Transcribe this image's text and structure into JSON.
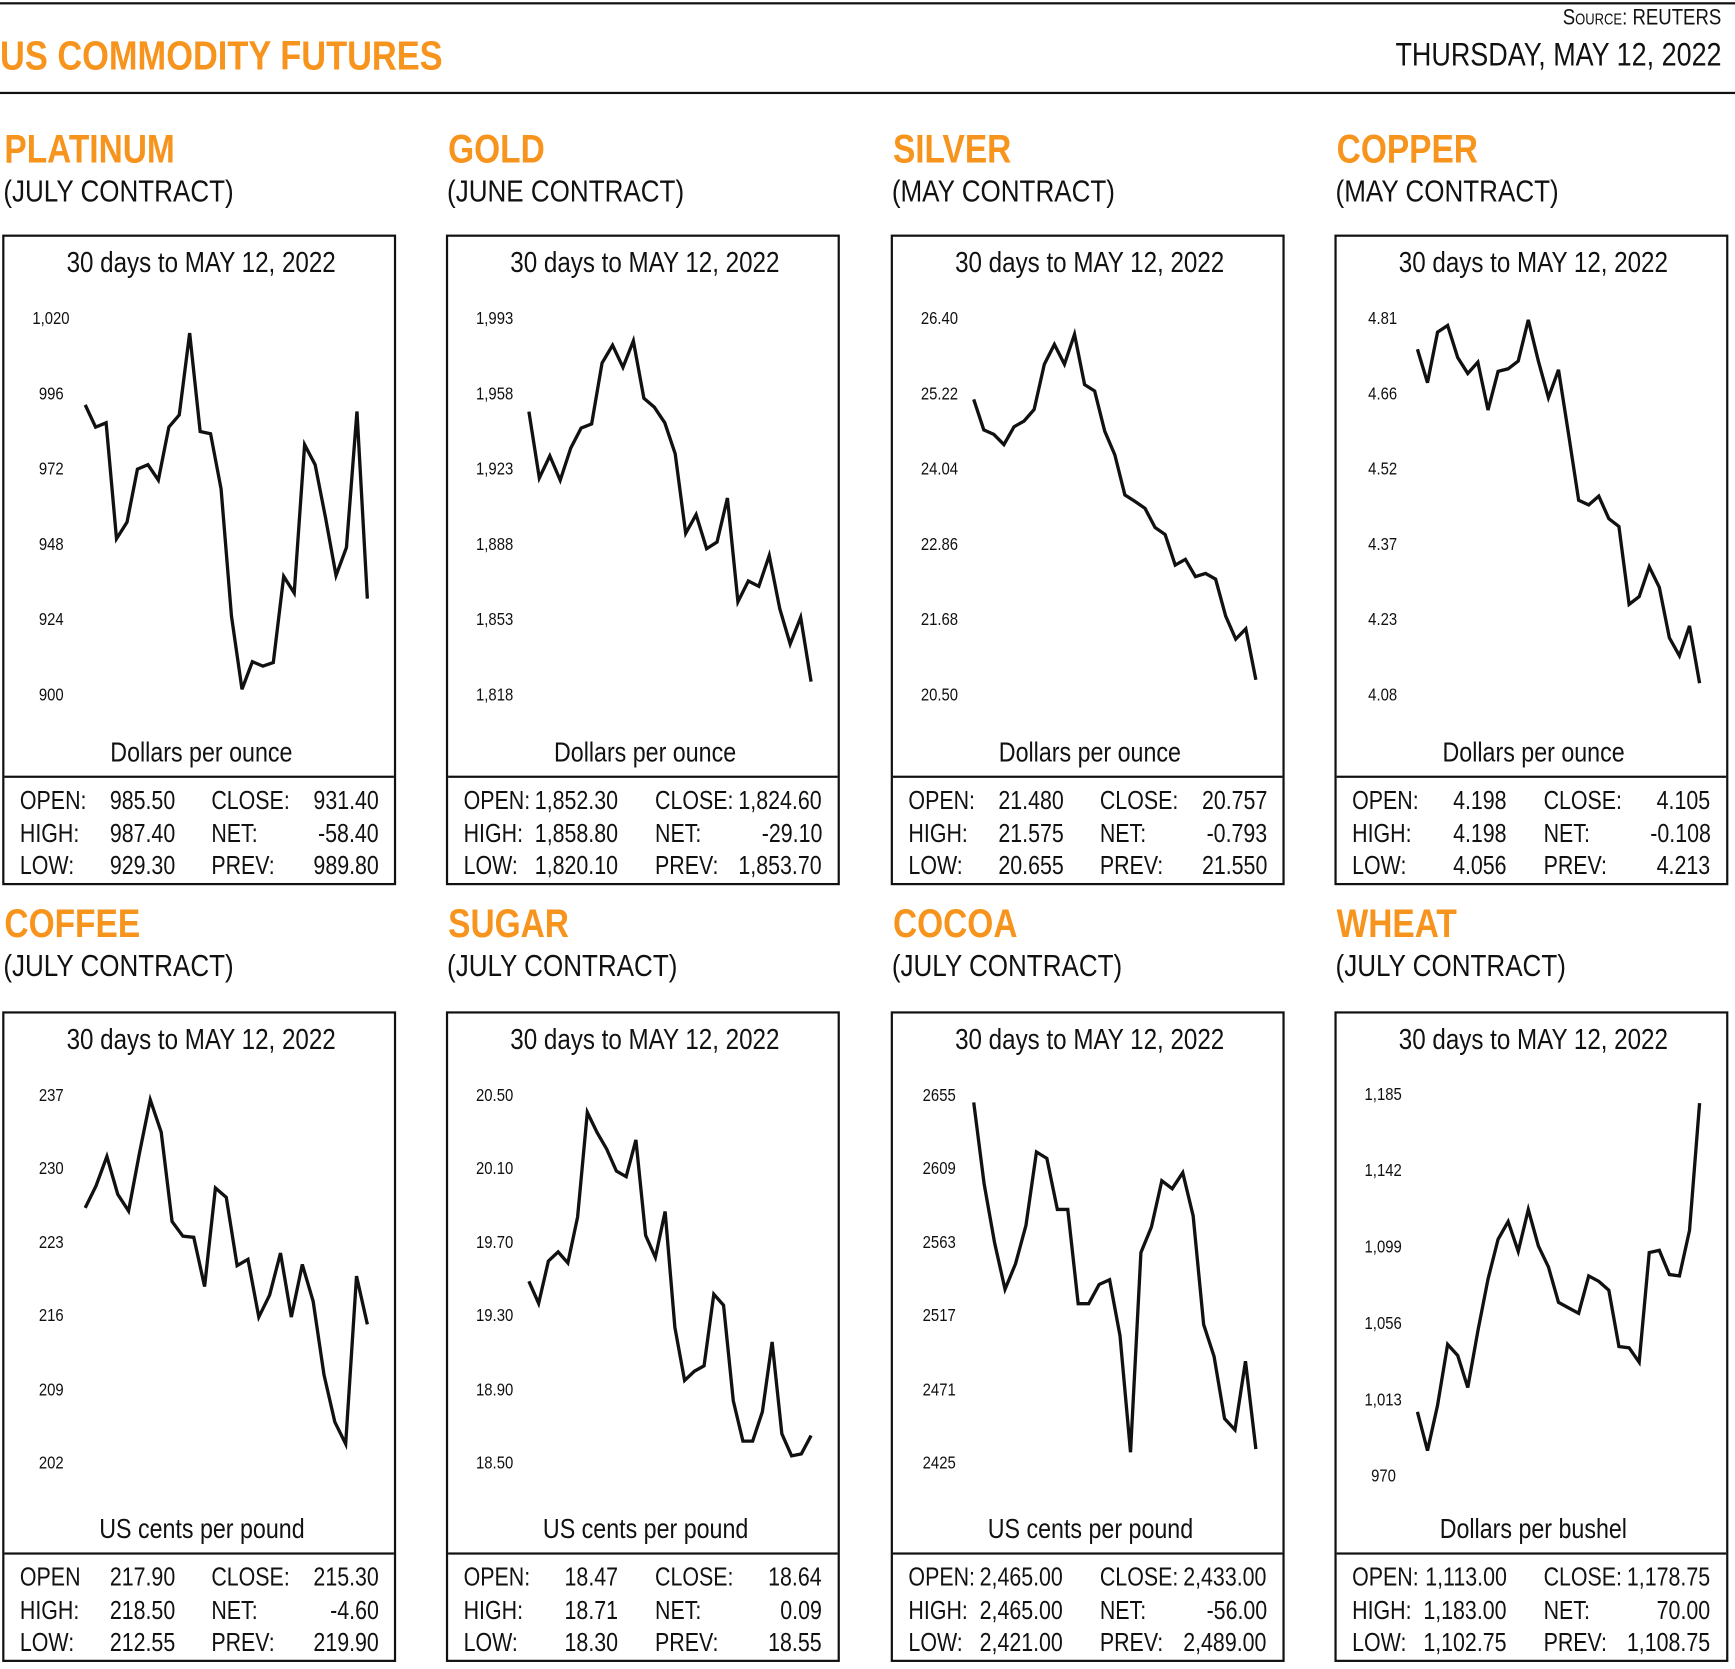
{
  "header": {
    "title": "US COMMODITY FUTURES",
    "source_label": "Source:",
    "source_value": "REUTERS",
    "date": "THURSDAY, MAY 12, 2022"
  },
  "colors": {
    "accent": "#f7941d",
    "line": "#111111"
  },
  "panels": [
    {
      "name": "PLATINUM",
      "contract": "(JULY CONTRACT)",
      "stats": {
        "open_label": "OPEN:",
        "open": "985.50",
        "high_label": "HIGH:",
        "high": "987.40",
        "low_label": "LOW:",
        "low": "929.30",
        "close_label": "CLOSE:",
        "close": "931.40",
        "net_label": "NET:",
        "net": "-58.40",
        "prev_label": "PREV:",
        "prev": "989.80"
      }
    },
    {
      "name": "GOLD",
      "contract": "(JUNE CONTRACT)",
      "stats": {
        "open_label": "OPEN:",
        "open": "1,852.30",
        "high_label": "HIGH:",
        "high": "1,858.80",
        "low_label": "LOW:",
        "low": "1,820.10",
        "close_label": "CLOSE:",
        "close": "1,824.60",
        "net_label": "NET:",
        "net": "-29.10",
        "prev_label": "PREV:",
        "prev": "1,853.70"
      }
    },
    {
      "name": "SILVER",
      "contract": "(MAY CONTRACT)",
      "stats": {
        "open_label": "OPEN:",
        "open": "21.480",
        "high_label": "HIGH:",
        "high": "21.575",
        "low_label": "LOW:",
        "low": "20.655",
        "close_label": "CLOSE:",
        "close": "20.757",
        "net_label": "NET:",
        "net": "-0.793",
        "prev_label": "PREV:",
        "prev": "21.550"
      }
    },
    {
      "name": "COPPER",
      "contract": "(MAY CONTRACT)",
      "stats": {
        "open_label": "OPEN:",
        "open": "4.198",
        "high_label": "HIGH:",
        "high": "4.198",
        "low_label": "LOW:",
        "low": "4.056",
        "close_label": "CLOSE:",
        "close": "4.105",
        "net_label": "NET:",
        "net": "-0.108",
        "prev_label": "PREV:",
        "prev": "4.213"
      }
    },
    {
      "name": "COFFEE",
      "contract": "(JULY CONTRACT)",
      "stats": {
        "open_label": "OPEN",
        "open": "217.90",
        "high_label": "HIGH:",
        "high": "218.50",
        "low_label": "LOW:",
        "low": "212.55",
        "close_label": "CLOSE:",
        "close": "215.30",
        "net_label": "NET:",
        "net": "-4.60",
        "prev_label": "PREV:",
        "prev": "219.90"
      }
    },
    {
      "name": "SUGAR",
      "contract": "(JULY CONTRACT)",
      "stats": {
        "open_label": "OPEN:",
        "open": "18.47",
        "high_label": "HIGH:",
        "high": "18.71",
        "low_label": "LOW:",
        "low": "18.30",
        "close_label": "CLOSE:",
        "close": "18.64",
        "net_label": "NET:",
        "net": "0.09",
        "prev_label": "PREV:",
        "prev": "18.55"
      }
    },
    {
      "name": "COCOA",
      "contract": "(JULY CONTRACT)",
      "stats": {
        "open_label": "OPEN:",
        "open": "2,465.00",
        "high_label": "HIGH:",
        "high": "2,465.00",
        "low_label": "LOW:",
        "low": "2,421.00",
        "close_label": "CLOSE:",
        "close": "2,433.00",
        "net_label": "NET:",
        "net": "-56.00",
        "prev_label": "PREV:",
        "prev": "2,489.00"
      }
    },
    {
      "name": "WHEAT",
      "contract": "(JULY CONTRACT)",
      "stats": {
        "open_label": "OPEN:",
        "open": "1,113.00",
        "high_label": "HIGH:",
        "high": "1,183.00",
        "low_label": "LOW:",
        "low": "1,102.75",
        "close_label": "CLOSE:",
        "close": "1,178.75",
        "net_label": "NET:",
        "net": "70.00",
        "prev_label": "PREV:",
        "prev": "1,108.75"
      }
    }
  ],
  "chart_data": [
    {
      "type": "line",
      "title": "30 days to MAY 12, 2022",
      "ylabel": "Dollars per ounce",
      "yticks": [
        "1,020",
        "996",
        "972",
        "948",
        "924",
        "900"
      ],
      "ylim": [
        900,
        1020
      ],
      "grid": false,
      "values": [
        993.2,
        986.1,
        987.5,
        950.5,
        955.8,
        972.7,
        974.1,
        969.2,
        986.1,
        990.0,
        1016.1,
        984.7,
        984.0,
        966.4,
        925.8,
        902.5,
        911.3,
        909.9,
        911.0,
        938.5,
        933.2,
        980.5,
        974.1,
        957.2,
        938.8,
        947.7,
        991.1,
        931.4
      ]
    },
    {
      "type": "line",
      "title": "30 days to MAY 12, 2022",
      "ylabel": "Dollars per ounce",
      "yticks": [
        "1,993",
        "1,958",
        "1,923",
        "1,888",
        "1,853",
        "1,818"
      ],
      "ylim": [
        1818,
        1993
      ],
      "grid": false,
      "values": [
        1950.8,
        1919.9,
        1930.2,
        1918.9,
        1933.8,
        1943.1,
        1945.1,
        1973.4,
        1981.7,
        1971.4,
        1983.7,
        1957.0,
        1952.9,
        1945.6,
        1931.2,
        1894.2,
        1902.9,
        1887.0,
        1890.1,
        1910.6,
        1862.3,
        1872.0,
        1869.5,
        1883.9,
        1859.2,
        1842.7,
        1855.1,
        1825.2
      ]
    },
    {
      "type": "line",
      "title": "30 days to MAY 12, 2022",
      "ylabel": "Dollars per ounce",
      "yticks": [
        "26.40",
        "25.22",
        "24.04",
        "22.86",
        "21.68",
        "20.50"
      ],
      "ylim": [
        20.5,
        26.4
      ],
      "grid": false,
      "values": [
        25.17,
        24.69,
        24.62,
        24.46,
        24.74,
        24.83,
        25.01,
        25.72,
        26.03,
        25.72,
        26.19,
        25.4,
        25.3,
        24.67,
        24.3,
        23.67,
        23.57,
        23.46,
        23.16,
        23.05,
        22.57,
        22.66,
        22.39,
        22.44,
        22.35,
        21.77,
        21.41,
        21.57,
        20.77
      ]
    },
    {
      "type": "line",
      "title": "30 days to MAY 12, 2022",
      "ylabel": "Dollars per ounce",
      "yticks": [
        "4.81",
        "4.66",
        "4.52",
        "4.37",
        "4.23",
        "4.08"
      ],
      "ylim": [
        4.08,
        4.81
      ],
      "grid": false,
      "values": [
        4.755,
        4.69,
        4.788,
        4.801,
        4.739,
        4.708,
        4.73,
        4.637,
        4.712,
        4.717,
        4.732,
        4.812,
        4.732,
        4.661,
        4.715,
        4.59,
        4.462,
        4.453,
        4.47,
        4.426,
        4.411,
        4.26,
        4.275,
        4.333,
        4.293,
        4.195,
        4.16,
        4.218,
        4.107
      ]
    },
    {
      "type": "line",
      "title": "30 days to MAY 12, 2022",
      "ylabel": "US cents per pound",
      "yticks": [
        "237",
        "230",
        "223",
        "216",
        "209",
        "202"
      ],
      "ylim": [
        202,
        237
      ],
      "grid": false,
      "values": [
        226.5,
        228.6,
        231.4,
        227.8,
        226.2,
        231.7,
        236.8,
        233.7,
        225.2,
        223.8,
        223.7,
        219.0,
        228.4,
        227.5,
        221.0,
        221.6,
        216.1,
        218.2,
        222.2,
        216.1,
        221.1,
        217.6,
        210.6,
        206.1,
        204.0,
        220.0,
        215.4
      ]
    },
    {
      "type": "line",
      "title": "30 days to MAY 12, 2022",
      "ylabel": "US cents per pound",
      "yticks": [
        "20.50",
        "20.10",
        "19.70",
        "19.30",
        "18.90",
        "18.50"
      ],
      "ylim": [
        18.5,
        20.5
      ],
      "grid": false,
      "values": [
        19.5,
        19.38,
        19.61,
        19.66,
        19.6,
        19.85,
        20.42,
        20.31,
        20.22,
        20.1,
        20.07,
        20.27,
        19.75,
        19.63,
        19.88,
        19.25,
        18.96,
        19.01,
        19.04,
        19.43,
        19.37,
        18.85,
        18.63,
        18.63,
        18.79,
        19.17,
        18.67,
        18.55,
        18.56,
        18.66
      ]
    },
    {
      "type": "line",
      "title": "30 days to MAY 12, 2022",
      "ylabel": "US cents per pound",
      "yticks": [
        "2655",
        "2609",
        "2563",
        "2517",
        "2471",
        "2425"
      ],
      "ylim": [
        2425,
        2655
      ],
      "grid": false,
      "values": [
        2652,
        2601,
        2564,
        2535,
        2551,
        2575,
        2621,
        2617,
        2585,
        2585,
        2526,
        2526,
        2538,
        2541,
        2506,
        2433,
        2558,
        2574,
        2603,
        2598,
        2608,
        2581,
        2513,
        2493,
        2454,
        2447,
        2490,
        2435
      ]
    },
    {
      "type": "line",
      "title": "30 days to MAY 12, 2022",
      "ylabel": "Dollars per bushel",
      "yticks": [
        "1,185",
        "1,142",
        "1,099",
        "1,056",
        "1,013",
        "970"
      ],
      "ylim": [
        970,
        1185
      ],
      "grid": false,
      "values": [
        1007.4,
        985.6,
        1011.1,
        1045.4,
        1039.2,
        1021.1,
        1052.9,
        1082.2,
        1104.6,
        1114.6,
        1097.8,
        1121.4,
        1100.9,
        1089.0,
        1069.1,
        1066.0,
        1062.9,
        1084.0,
        1080.9,
        1075.9,
        1044.2,
        1043.5,
        1035.4,
        1097.1,
        1098.4,
        1084.7,
        1084.0,
        1109.6,
        1181.3
      ]
    }
  ]
}
